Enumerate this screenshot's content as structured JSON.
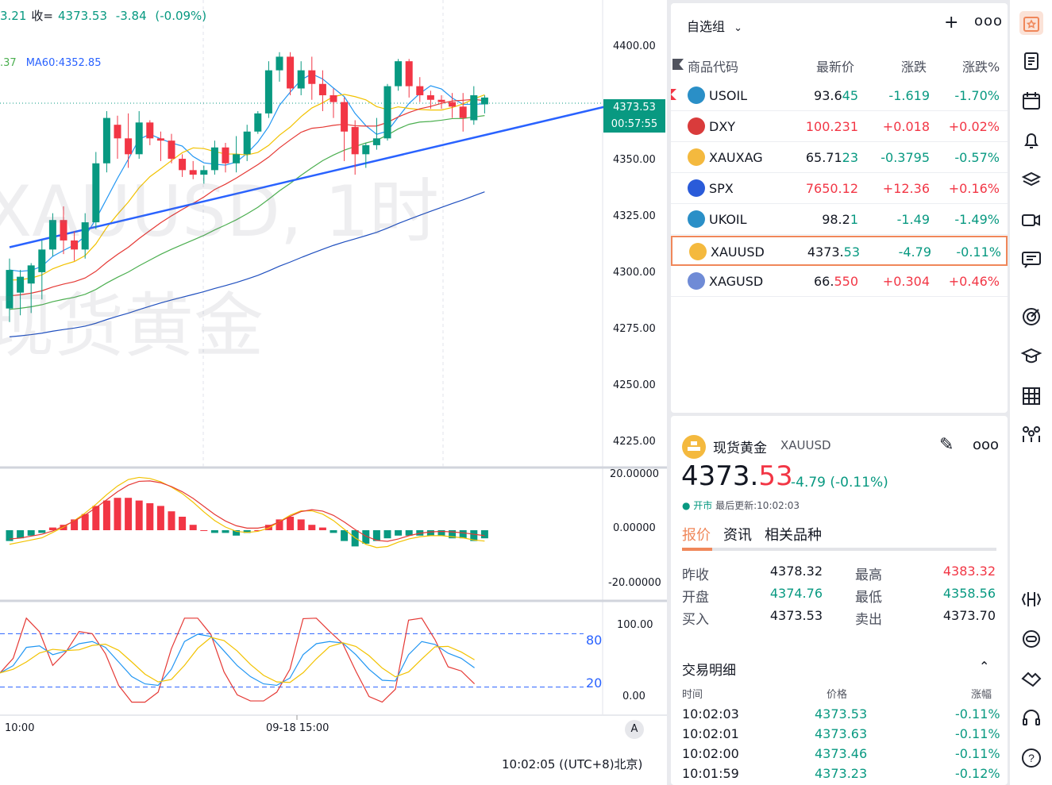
{
  "chart": {
    "header": {
      "prefix": "3.21",
      "close_label": "收=",
      "close_value": "4373.53",
      "change": "-3.84",
      "change_pct": "(-0.09%)"
    },
    "ma": {
      "prefix": ".37",
      "ma60": "MA60:4352.85"
    },
    "watermark": {
      "line1": "XAUUSD, 1时",
      "line2": "现货黄金"
    },
    "price_axis": [
      "4400.00",
      "4350.00",
      "4325.00",
      "4300.00",
      "4275.00",
      "4250.00",
      "4225.00"
    ],
    "price_tag": {
      "price": "4373.53",
      "countdown": "00:57:55"
    },
    "macd_axis": [
      "20.00000",
      "0.00000",
      "-20.00000"
    ],
    "kdj_axis": [
      "100.00",
      "0.00"
    ],
    "kdj_levels": [
      "80",
      "20"
    ],
    "time_axis": [
      "10:00",
      "09-18 15:00"
    ],
    "auto_button": "A",
    "clock": "10:02:05 ((UTC+8)北京)"
  },
  "chart_data": {
    "type": "candlestick",
    "candles": [
      {
        "o": 4283,
        "h": 4305,
        "l": 4277,
        "c": 4300
      },
      {
        "o": 4290,
        "h": 4300,
        "l": 4280,
        "c": 4297
      },
      {
        "o": 4294,
        "h": 4303,
        "l": 4281,
        "c": 4302
      },
      {
        "o": 4299,
        "h": 4313,
        "l": 4287,
        "c": 4309
      },
      {
        "o": 4309,
        "h": 4325,
        "l": 4306,
        "c": 4322
      },
      {
        "o": 4322,
        "h": 4328,
        "l": 4307,
        "c": 4313
      },
      {
        "o": 4313,
        "h": 4317,
        "l": 4304,
        "c": 4309
      },
      {
        "o": 4309,
        "h": 4325,
        "l": 4305,
        "c": 4321
      },
      {
        "o": 4321,
        "h": 4352,
        "l": 4318,
        "c": 4347
      },
      {
        "o": 4347,
        "h": 4370,
        "l": 4343,
        "c": 4367
      },
      {
        "o": 4364,
        "h": 4368,
        "l": 4349,
        "c": 4358
      },
      {
        "o": 4358,
        "h": 4369,
        "l": 4345,
        "c": 4351
      },
      {
        "o": 4351,
        "h": 4370,
        "l": 4349,
        "c": 4365
      },
      {
        "o": 4365,
        "h": 4366,
        "l": 4355,
        "c": 4358
      },
      {
        "o": 4358,
        "h": 4361,
        "l": 4348,
        "c": 4357
      },
      {
        "o": 4357,
        "h": 4360,
        "l": 4347,
        "c": 4349
      },
      {
        "o": 4349,
        "h": 4351,
        "l": 4341,
        "c": 4344
      },
      {
        "o": 4344,
        "h": 4348,
        "l": 4340,
        "c": 4342
      },
      {
        "o": 4342,
        "h": 4346,
        "l": 4338,
        "c": 4344
      },
      {
        "o": 4344,
        "h": 4357,
        "l": 4342,
        "c": 4354
      },
      {
        "o": 4354,
        "h": 4356,
        "l": 4343,
        "c": 4347
      },
      {
        "o": 4347,
        "h": 4359,
        "l": 4343,
        "c": 4351
      },
      {
        "o": 4351,
        "h": 4364,
        "l": 4348,
        "c": 4361
      },
      {
        "o": 4361,
        "h": 4370,
        "l": 4360,
        "c": 4369
      },
      {
        "o": 4369,
        "h": 4392,
        "l": 4367,
        "c": 4388
      },
      {
        "o": 4388,
        "h": 4396,
        "l": 4383,
        "c": 4394
      },
      {
        "o": 4394,
        "h": 4396,
        "l": 4377,
        "c": 4380
      },
      {
        "o": 4380,
        "h": 4392,
        "l": 4377,
        "c": 4388
      },
      {
        "o": 4388,
        "h": 4394,
        "l": 4375,
        "c": 4382
      },
      {
        "o": 4382,
        "h": 4388,
        "l": 4370,
        "c": 4377
      },
      {
        "o": 4377,
        "h": 4380,
        "l": 4367,
        "c": 4374
      },
      {
        "o": 4374,
        "h": 4376,
        "l": 4348,
        "c": 4361
      },
      {
        "o": 4363,
        "h": 4366,
        "l": 4342,
        "c": 4351
      },
      {
        "o": 4351,
        "h": 4356,
        "l": 4345,
        "c": 4355
      },
      {
        "o": 4355,
        "h": 4367,
        "l": 4353,
        "c": 4358
      },
      {
        "o": 4358,
        "h": 4382,
        "l": 4357,
        "c": 4381
      },
      {
        "o": 4381,
        "h": 4393,
        "l": 4379,
        "c": 4392
      },
      {
        "o": 4392,
        "h": 4393,
        "l": 4376,
        "c": 4381
      },
      {
        "o": 4381,
        "h": 4385,
        "l": 4374,
        "c": 4377
      },
      {
        "o": 4377,
        "h": 4379,
        "l": 4371,
        "c": 4375
      },
      {
        "o": 4375,
        "h": 4377,
        "l": 4371,
        "c": 4374
      },
      {
        "o": 4374,
        "h": 4378,
        "l": 4367,
        "c": 4372
      },
      {
        "o": 4372,
        "h": 4378,
        "l": 4361,
        "c": 4367
      },
      {
        "o": 4366,
        "h": 4381,
        "l": 4364,
        "c": 4377
      },
      {
        "o": 4373,
        "h": 4377,
        "l": 4369,
        "c": 4376
      }
    ],
    "trendline": [
      [
        0,
        4310
      ],
      [
        44.5,
        4360
      ]
    ],
    "macd_hist": [
      -4,
      -3,
      -2,
      -1,
      1,
      2,
      4,
      6,
      9,
      11,
      12,
      12,
      11,
      10,
      9,
      7,
      5,
      2,
      0,
      -1,
      -1,
      -2,
      -1,
      0,
      2,
      4,
      5,
      4,
      2,
      1,
      -1,
      -4,
      -6,
      -5,
      -4,
      -3,
      -2,
      -2,
      -2,
      -2,
      -2,
      -3,
      -3,
      -4,
      -3
    ],
    "kdj_k": [
      35,
      45,
      70,
      72,
      60,
      65,
      75,
      78,
      70,
      50,
      30,
      20,
      18,
      40,
      78,
      88,
      85,
      65,
      45,
      30,
      20,
      18,
      28,
      60,
      75,
      78,
      76,
      60,
      40,
      25,
      24,
      60,
      78,
      74,
      62,
      55,
      42
    ]
  },
  "watchlist": {
    "title": "自选组",
    "add": "+",
    "more": "ooo",
    "headers": {
      "code": "商品代码",
      "price": "最新价",
      "change": "涨跌",
      "pct": "涨跌%"
    },
    "rows": [
      {
        "symbol": "USOIL",
        "price_a": "93.6",
        "price_b": "45",
        "change": "-1.619",
        "pct": "-1.70%",
        "icon_color": "#2a8fc7",
        "dir": "down",
        "flag": "▶"
      },
      {
        "symbol": "DXY",
        "price_a": "100.231",
        "price_b": "",
        "change": "+0.018",
        "pct": "+0.02%",
        "icon_color": "#d93b3b",
        "dir": "up",
        "flag": ""
      },
      {
        "symbol": "XAUXAG",
        "price_a": "65.71",
        "price_b": "23",
        "change": "-0.3795",
        "pct": "-0.57%",
        "icon_color": "#f4b93e",
        "dir": "down",
        "flag": ""
      },
      {
        "symbol": "SPX",
        "price_a": "7650.12",
        "price_b": "",
        "change": "+12.36",
        "pct": "+0.16%",
        "icon_color": "#2a5bd9",
        "dir": "up",
        "flag": ""
      },
      {
        "symbol": "UKOIL",
        "price_a": "98.2",
        "price_b": "1",
        "change": "-1.49",
        "pct": "-1.49%",
        "icon_color": "#2a8fc7",
        "dir": "down",
        "flag": ""
      },
      {
        "symbol": "XAUUSD",
        "price_a": "4373.",
        "price_b": "53",
        "change": "-4.79",
        "pct": "-0.11%",
        "icon_color": "#f4b93e",
        "dir": "down",
        "flag": ""
      },
      {
        "symbol": "XAGUSD",
        "price_a": "66.",
        "price_b": "550",
        "change": "+0.304",
        "pct": "+0.46%",
        "icon_color": "#6f8bd6",
        "dir": "up",
        "flag": ""
      }
    ]
  },
  "detail": {
    "name": "现货黄金",
    "symbol": "XAUUSD",
    "price_a": "4373.",
    "price_b": "53",
    "change": "-4.79 (-0.11%)",
    "status_open": "● 开市",
    "status_update": "最后更新:10:02:03",
    "tabs": [
      "报价",
      "资讯",
      "相关品种"
    ],
    "quotes": [
      {
        "label": "昨收",
        "value": "4378.32",
        "color": "#131722",
        "label2": "最高",
        "value2": "4383.32",
        "color2": "#f23645"
      },
      {
        "label": "开盘",
        "value": "4374.76",
        "color": "#089981",
        "label2": "最低",
        "value2": "4358.56",
        "color2": "#089981"
      },
      {
        "label": "买入",
        "value": "4373.53",
        "color": "#131722",
        "label2": "卖出",
        "value2": "4373.70",
        "color2": "#131722"
      }
    ],
    "trades_title": "交易明细",
    "trades_header": {
      "time": "时间",
      "price": "价格",
      "pct": "涨幅"
    },
    "trades": [
      {
        "time": "10:02:03",
        "price": "4373.53",
        "pct": "-0.11%"
      },
      {
        "time": "10:02:01",
        "price": "4373.63",
        "pct": "-0.11%"
      },
      {
        "time": "10:02:00",
        "price": "4373.46",
        "pct": "-0.11%"
      },
      {
        "time": "10:01:59",
        "price": "4373.23",
        "pct": "-0.12%"
      }
    ]
  },
  "colors": {
    "up": "#f23645",
    "down": "#089981",
    "accent": "#f0875a",
    "trend": "#2962ff"
  },
  "toolbar": [
    "watchlist-icon",
    "news-icon",
    "calendar-icon",
    "alert-bell-icon",
    "layers-icon",
    "video-icon",
    "chat-icon",
    "target-icon",
    "education-icon",
    "table-icon",
    "community-icon",
    "data-window-icon",
    "robot-icon",
    "handshake-icon",
    "headset-icon",
    "help-icon"
  ]
}
